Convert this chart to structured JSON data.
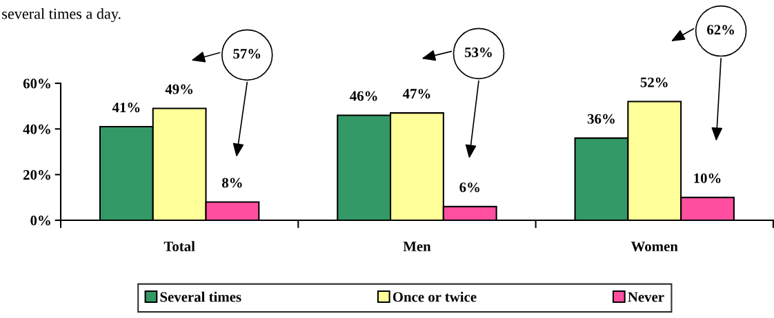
{
  "chart_data": {
    "type": "bar",
    "subtitle": "several times a day.",
    "categories": [
      "Total",
      "Men",
      "Women"
    ],
    "series": [
      {
        "name": "Several times",
        "color": "#339966",
        "values": [
          41,
          46,
          36
        ],
        "value_labels": [
          "41%",
          "46%",
          "36%"
        ]
      },
      {
        "name": "Once or twice",
        "color": "#ffff99",
        "values": [
          49,
          47,
          52
        ],
        "value_labels": [
          "49%",
          "47%",
          "52%"
        ]
      },
      {
        "name": "Never",
        "color": "#ff4fa0",
        "values": [
          8,
          6,
          10
        ],
        "value_labels": [
          "8%",
          "6%",
          "10%"
        ]
      }
    ],
    "ylim": [
      0,
      60
    ],
    "yticks": [
      {
        "value": 0,
        "label": "0%"
      },
      {
        "value": 20,
        "label": "20%"
      },
      {
        "value": 40,
        "label": "40%"
      },
      {
        "value": 60,
        "label": "60%"
      }
    ],
    "grid": false,
    "legend": "bottom",
    "annotations": [
      "57%",
      "53%",
      "62%"
    ]
  }
}
